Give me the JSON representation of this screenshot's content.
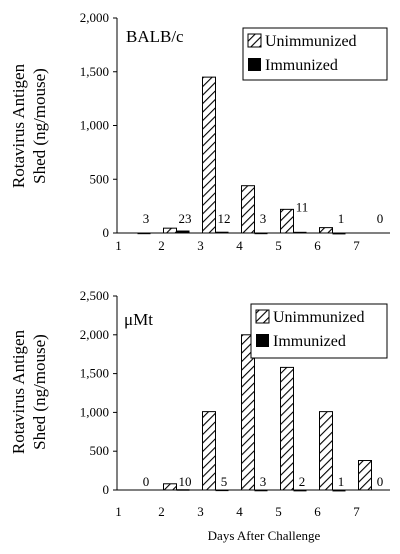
{
  "chart_data": [
    {
      "type": "bar",
      "title": "BALB/c",
      "ylabel_line1": "Rotavirus Antigen",
      "ylabel_line2": "Shed  (ng/mouse)",
      "xlabel": "",
      "categories": [
        "1",
        "2",
        "3",
        "4",
        "5",
        "6",
        "7"
      ],
      "ylim": [
        0,
        2000
      ],
      "yticks": [
        0,
        500,
        1000,
        1500,
        2000
      ],
      "ytick_labels": [
        "0",
        "500",
        "1,000",
        "1,500",
        "2,000"
      ],
      "series": [
        {
          "name": "Unimmunized",
          "values": [
            0,
            45,
            1450,
            440,
            220,
            50,
            0
          ]
        },
        {
          "name": "Immunized",
          "values": [
            3,
            23,
            12,
            3,
            11,
            1,
            0
          ]
        }
      ],
      "data_labels": [
        "3",
        "23",
        "12",
        "3",
        "11",
        "1",
        "0"
      ],
      "legend": "top-right",
      "grid": false
    },
    {
      "type": "bar",
      "title": "μMt",
      "ylabel_line1": "Rotavirus Antigen",
      "ylabel_line2": "Shed (ng/mouse)",
      "xlabel": "Days After Challenge",
      "categories": [
        "1",
        "2",
        "3",
        "4",
        "5",
        "6",
        "7"
      ],
      "ylim": [
        0,
        2500
      ],
      "yticks": [
        0,
        500,
        1000,
        1500,
        2000,
        2500
      ],
      "ytick_labels": [
        "0",
        "500",
        "1,000",
        "1,500",
        "2,000",
        "2,500"
      ],
      "series": [
        {
          "name": "Unimmunized",
          "values": [
            0,
            80,
            1010,
            2000,
            1580,
            1010,
            380
          ]
        },
        {
          "name": "Immunized",
          "values": [
            0,
            10,
            5,
            3,
            2,
            1,
            0
          ]
        }
      ],
      "data_labels": [
        "0",
        "10",
        "5",
        "3",
        "2",
        "1",
        "0"
      ],
      "legend": "top-right",
      "grid": false
    }
  ]
}
